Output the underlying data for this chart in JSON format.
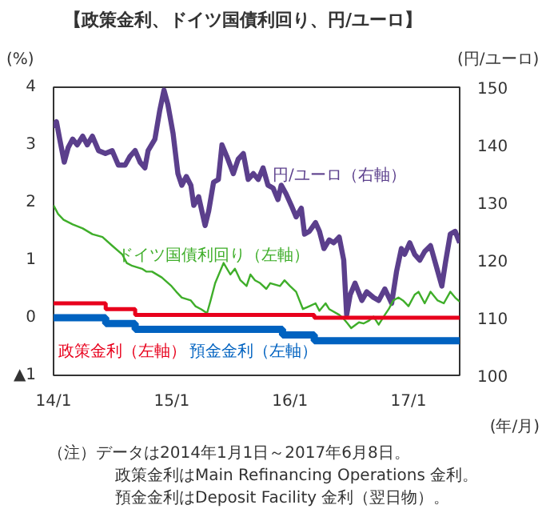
{
  "chart_data": {
    "type": "line",
    "title": "【政策金利、ドイツ国債利回り、円/ユーロ】",
    "ylabel": "(%)",
    "y2label": "(円/ユーロ)",
    "xlabel": "(年/月)",
    "xlim": [
      "2014-01-01",
      "2017-06-08"
    ],
    "xticks": [
      {
        "value": "2014-01-01",
        "label": "14/1"
      },
      {
        "value": "2015-01-01",
        "label": "15/1"
      },
      {
        "value": "2016-01-01",
        "label": "16/1"
      },
      {
        "value": "2017-01-01",
        "label": "17/1"
      }
    ],
    "ylim": [
      -1,
      4
    ],
    "yticks": [
      {
        "value": -1,
        "label": "▲1"
      },
      0,
      1,
      2,
      3,
      4
    ],
    "y2lim": [
      100,
      150
    ],
    "y2ticks": [
      100,
      110,
      120,
      130,
      140,
      150
    ],
    "grid": false,
    "legend": false,
    "series": [
      {
        "name": "円/ユーロ（右軸）",
        "color": "#5b3f8c",
        "axis": "y2",
        "x": [
          "2014-01-01",
          "2014-01-10",
          "2014-01-20",
          "2014-02-03",
          "2014-02-15",
          "2014-03-01",
          "2014-03-15",
          "2014-04-01",
          "2014-04-15",
          "2014-05-01",
          "2014-05-20",
          "2014-06-10",
          "2014-07-01",
          "2014-07-20",
          "2014-08-10",
          "2014-08-25",
          "2014-09-10",
          "2014-09-25",
          "2014-10-10",
          "2014-10-20",
          "2014-11-10",
          "2014-11-25",
          "2014-12-08",
          "2014-12-20",
          "2015-01-05",
          "2015-01-20",
          "2015-02-01",
          "2015-02-15",
          "2015-03-01",
          "2015-03-10",
          "2015-03-25",
          "2015-04-14",
          "2015-04-25",
          "2015-05-10",
          "2015-05-25",
          "2015-06-05",
          "2015-06-20",
          "2015-07-10",
          "2015-07-25",
          "2015-08-10",
          "2015-08-25",
          "2015-09-10",
          "2015-09-25",
          "2015-10-10",
          "2015-10-25",
          "2015-11-10",
          "2015-11-25",
          "2015-12-05",
          "2015-12-20",
          "2016-01-05",
          "2016-01-20",
          "2016-02-05",
          "2016-02-15",
          "2016-03-01",
          "2016-03-20",
          "2016-04-01",
          "2016-04-15",
          "2016-05-01",
          "2016-05-15",
          "2016-06-01",
          "2016-06-15",
          "2016-06-24",
          "2016-07-05",
          "2016-07-20",
          "2016-08-10",
          "2016-08-25",
          "2016-09-15",
          "2016-10-01",
          "2016-10-20",
          "2016-11-10",
          "2016-11-25",
          "2016-12-10",
          "2016-12-20",
          "2017-01-05",
          "2017-01-20",
          "2017-02-05",
          "2017-02-20",
          "2017-03-10",
          "2017-03-25",
          "2017-04-14",
          "2017-04-25",
          "2017-05-10",
          "2017-05-25",
          "2017-06-08"
        ],
        "values": [
          143,
          144,
          141,
          137,
          139.5,
          141,
          140,
          141.5,
          140,
          141.5,
          139,
          138.5,
          139,
          136.5,
          136.5,
          138,
          139,
          137,
          136,
          139,
          141,
          146,
          149.5,
          147,
          142,
          135,
          133,
          134.5,
          133,
          129.5,
          131,
          126,
          128.5,
          133.5,
          134,
          140,
          138,
          135,
          137.5,
          138.5,
          134,
          135,
          134,
          136,
          133,
          132.5,
          130.5,
          133,
          131.5,
          129.5,
          127.5,
          129,
          124.5,
          125,
          126.5,
          125,
          122,
          123.5,
          123,
          124,
          120,
          110.5,
          114,
          116,
          113,
          114.5,
          113.5,
          113,
          115,
          112.5,
          118,
          122,
          121,
          123,
          121,
          120,
          121.5,
          122.5,
          119.5,
          115.5,
          119.5,
          124.5,
          125,
          123
        ]
      },
      {
        "name": "ドイツ国債利回り（左軸）",
        "color": "#3fae2a",
        "x": [
          "2014-01-01",
          "2014-01-15",
          "2014-02-01",
          "2014-03-01",
          "2014-04-01",
          "2014-05-01",
          "2014-06-01",
          "2014-07-01",
          "2014-08-01",
          "2014-08-15",
          "2014-09-01",
          "2014-10-01",
          "2014-10-15",
          "2014-11-01",
          "2014-12-01",
          "2014-12-31",
          "2015-01-15",
          "2015-02-01",
          "2015-03-01",
          "2015-03-15",
          "2015-04-01",
          "2015-04-20",
          "2015-05-01",
          "2015-05-15",
          "2015-06-10",
          "2015-07-01",
          "2015-07-15",
          "2015-08-01",
          "2015-08-20",
          "2015-09-01",
          "2015-09-15",
          "2015-10-01",
          "2015-10-20",
          "2015-11-01",
          "2015-12-01",
          "2015-12-15",
          "2016-01-01",
          "2016-01-20",
          "2016-02-10",
          "2016-03-01",
          "2016-03-20",
          "2016-04-01",
          "2016-04-20",
          "2016-05-01",
          "2016-06-01",
          "2016-06-15",
          "2016-06-27",
          "2016-07-08",
          "2016-08-01",
          "2016-08-15",
          "2016-09-01",
          "2016-09-15",
          "2016-10-01",
          "2016-10-20",
          "2016-11-01",
          "2016-11-15",
          "2016-12-01",
          "2016-12-15",
          "2017-01-01",
          "2017-01-20",
          "2017-02-01",
          "2017-02-20",
          "2017-03-10",
          "2017-04-01",
          "2017-04-20",
          "2017-05-10",
          "2017-05-25",
          "2017-06-08"
        ],
        "values": [
          1.95,
          1.8,
          1.7,
          1.62,
          1.55,
          1.45,
          1.4,
          1.25,
          1.1,
          0.95,
          0.9,
          0.85,
          0.8,
          0.8,
          0.7,
          0.55,
          0.45,
          0.35,
          0.3,
          0.2,
          0.15,
          0.08,
          0.3,
          0.6,
          0.95,
          0.75,
          0.85,
          0.65,
          0.55,
          0.75,
          0.65,
          0.6,
          0.5,
          0.6,
          0.55,
          0.65,
          0.55,
          0.45,
          0.15,
          0.2,
          0.25,
          0.12,
          0.25,
          0.15,
          0.05,
          -0.02,
          -0.1,
          -0.18,
          -0.08,
          -0.1,
          -0.05,
          0.02,
          -0.12,
          0.05,
          0.15,
          0.3,
          0.35,
          0.3,
          0.2,
          0.4,
          0.45,
          0.25,
          0.45,
          0.3,
          0.25,
          0.45,
          0.35,
          0.28
        ]
      },
      {
        "name": "政策金利（左軸）",
        "color": "#e8001c",
        "type": "step",
        "x": [
          "2014-01-01",
          "2014-06-11",
          "2014-09-10",
          "2016-03-16",
          "2017-06-08"
        ],
        "values": [
          0.25,
          0.15,
          0.05,
          0,
          0
        ]
      },
      {
        "name": "預金金利（左軸）",
        "color": "#0062c0",
        "type": "step",
        "x": [
          "2014-01-01",
          "2014-06-11",
          "2014-09-10",
          "2015-12-09",
          "2016-03-16",
          "2017-06-08"
        ],
        "values": [
          0,
          -0.1,
          -0.2,
          -0.3,
          -0.4,
          -0.4
        ]
      }
    ],
    "annotations": [
      "（注）データは2014年1月1日～2017年6月8日。",
      "政策金利はMain Refinancing Operations 金利。",
      "預金金利はDeposit Facility 金利（翌日物）。"
    ]
  }
}
